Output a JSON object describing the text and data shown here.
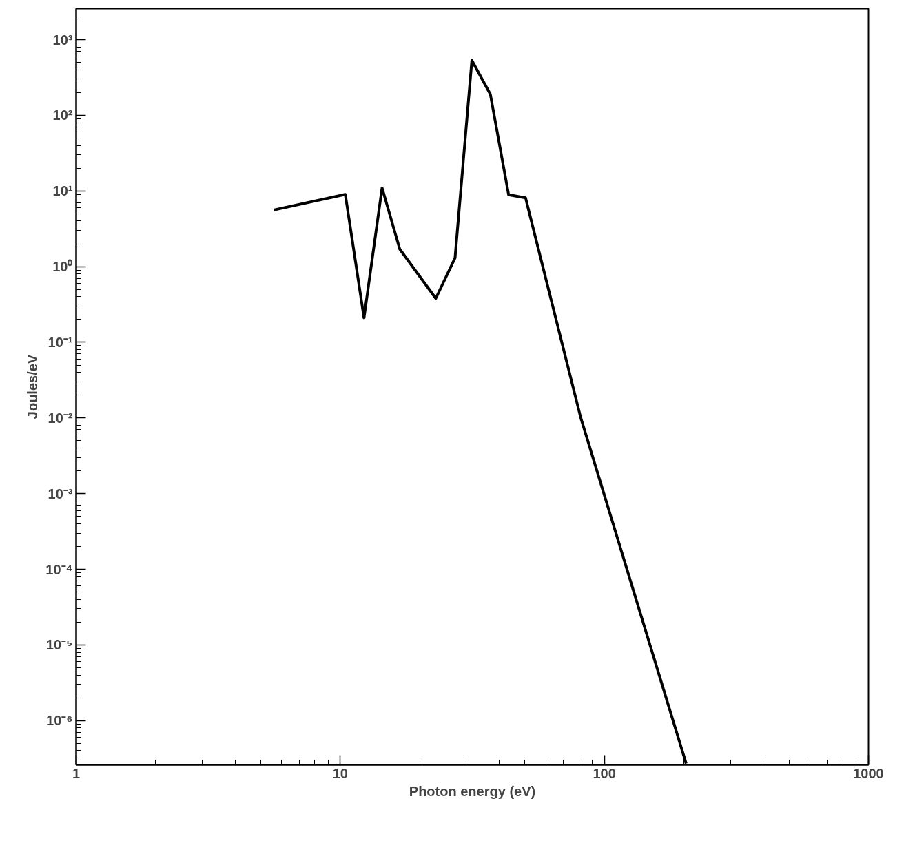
{
  "chart_data": {
    "type": "line",
    "xlabel": "Photon energy (eV)",
    "ylabel": "Joules/eV",
    "log": "xy",
    "grid": false,
    "marker": "none",
    "line_style": "solid",
    "xlim": [
      1,
      1000
    ],
    "ylim": [
      2.6e-07,
      2570
    ],
    "xticks": [
      1,
      10,
      100,
      1000
    ],
    "yticks": [
      {
        "value": 1e-06,
        "label": "10⁻⁶"
      },
      {
        "value": 1e-05,
        "label": "10⁻⁵"
      },
      {
        "value": 0.0001,
        "label": "10⁻⁴"
      },
      {
        "value": 0.001,
        "label": "10⁻³"
      },
      {
        "value": 0.01,
        "label": "10⁻²"
      },
      {
        "value": 0.1,
        "label": "10⁻¹"
      },
      {
        "value": 1,
        "label": "10⁰"
      },
      {
        "value": 10,
        "label": "10¹"
      },
      {
        "value": 100,
        "label": "10²"
      },
      {
        "value": 1000,
        "label": "10³"
      }
    ],
    "series": [
      {
        "color": "#000000",
        "x": [
          5.6,
          10.45,
          12.3,
          14.4,
          16.8,
          23.0,
          27.2,
          31.5,
          37.0,
          43.4,
          50.3,
          81.3,
          204
        ],
        "values": [
          5.6,
          9.0,
          0.21,
          11,
          1.7,
          0.38,
          1.3,
          530,
          190,
          8.9,
          8.1,
          0.0102,
          2.7e-07
        ]
      }
    ]
  }
}
